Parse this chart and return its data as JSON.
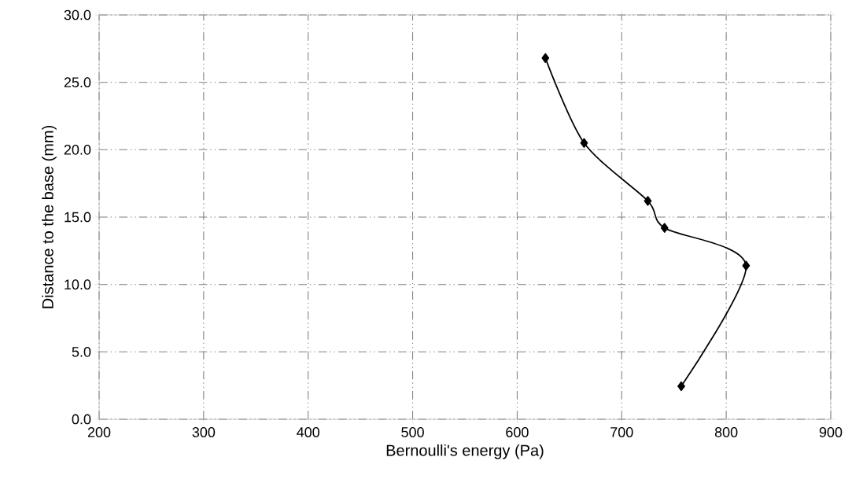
{
  "chart_data": {
    "type": "line",
    "xlabel": "Bernoulli's energy (Pa)",
    "ylabel": "Distance to the base (mm)",
    "x": [
      627,
      664,
      725,
      741,
      819,
      757
    ],
    "series": [
      {
        "color": "#000000",
        "values": [
          26.8,
          20.5,
          16.2,
          14.2,
          11.4,
          2.45
        ]
      }
    ],
    "xlim": [
      200,
      900
    ],
    "xticks": [
      200,
      300,
      400,
      500,
      600,
      700,
      800,
      900
    ],
    "ylim": [
      0,
      30
    ],
    "yticks": [
      {
        "value": 0,
        "label": "0.0"
      },
      {
        "value": 5,
        "label": "5.0"
      },
      {
        "value": 10,
        "label": "10.0"
      },
      {
        "value": 15,
        "label": "15.0"
      },
      {
        "value": 20,
        "label": "20.0"
      },
      {
        "value": 25,
        "label": "25.0"
      },
      {
        "value": 30,
        "label": "30.0"
      }
    ],
    "grid": true,
    "marker": "diamond",
    "line_style": "solid"
  }
}
